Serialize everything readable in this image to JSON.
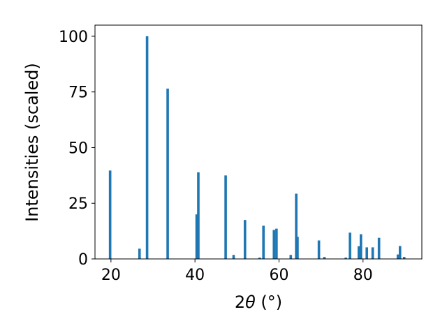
{
  "chart_data": {
    "type": "bar",
    "title": "",
    "xlabel_prefix": "2",
    "xlabel_symbol": "θ",
    "xlabel_suffix": " (°)",
    "ylabel": "Intensities (scaled)",
    "xlim": [
      16.2,
      94.0
    ],
    "ylim": [
      0,
      105
    ],
    "xticks": [
      20,
      40,
      60,
      80
    ],
    "yticks": [
      0,
      25,
      50,
      75,
      100
    ],
    "grid": false,
    "bar_color": "#1f77b4",
    "bar_width": 0.6,
    "x": [
      19.8,
      26.8,
      28.6,
      33.5,
      40.4,
      40.8,
      47.3,
      49.2,
      51.9,
      55.4,
      56.3,
      58.8,
      59.4,
      62.8,
      64.1,
      64.4,
      69.5,
      70.8,
      75.9,
      76.9,
      79.0,
      79.5,
      80.9,
      82.3,
      83.8,
      88.3,
      88.8,
      89.8
    ],
    "values": [
      39.7,
      4.6,
      100,
      76.5,
      20.0,
      38.9,
      37.5,
      1.8,
      17.5,
      0.6,
      14.9,
      13.0,
      13.6,
      1.8,
      29.3,
      9.9,
      8.3,
      0.9,
      0.6,
      11.8,
      5.7,
      11.1,
      5.2,
      5.2,
      9.5,
      2.0,
      5.8,
      0.9
    ]
  }
}
